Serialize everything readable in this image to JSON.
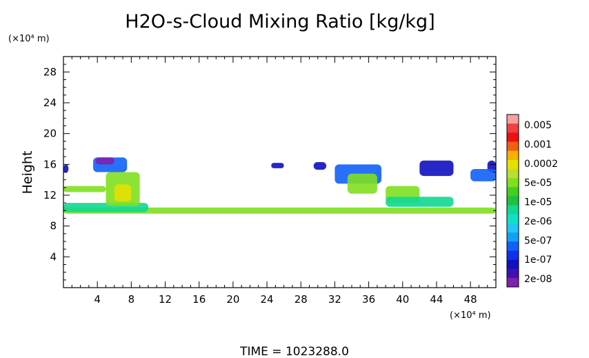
{
  "chart_data": {
    "type": "heatmap",
    "title": "H2O-s-Cloud Mixing Ratio [kg/kg]",
    "ylabel": "Height",
    "xlabel": "",
    "x_unit": "(×10⁴ m)",
    "y_unit": "(×10⁴ m)",
    "xlim": [
      0,
      51
    ],
    "ylim": [
      0,
      30
    ],
    "x_ticks": [
      "4",
      "8",
      "12",
      "16",
      "20",
      "24",
      "28",
      "32",
      "36",
      "40",
      "44",
      "48"
    ],
    "y_ticks": [
      "4",
      "8",
      "12",
      "16",
      "20",
      "24",
      "28"
    ],
    "footer": "TIME = 1023288.0",
    "colorbar": {
      "labels": [
        "0.005",
        "0.001",
        "0.0002",
        "5e-05",
        "1e-05",
        "2e-06",
        "5e-07",
        "1e-07",
        "2e-08"
      ],
      "colors_top_to_bottom": [
        "#f8a0a0",
        "#f04040",
        "#f01010",
        "#f06010",
        "#f5b000",
        "#e6e000",
        "#b8e030",
        "#80e020",
        "#40d020",
        "#20c040",
        "#10d890",
        "#10e0c8",
        "#20c8f0",
        "#10a0f8",
        "#1060f8",
        "#1030f0",
        "#1010c0",
        "#4010b0",
        "#8020b0"
      ]
    },
    "regions": [
      {
        "name": "lower cloud band",
        "x": [
          0.0,
          51.0
        ],
        "y": [
          9.6,
          10.4
        ],
        "level": "5e-05"
      },
      {
        "name": "band left",
        "x": [
          0.0,
          10.0
        ],
        "y": [
          9.8,
          11.0
        ],
        "level": "1e-05"
      },
      {
        "name": "left anvil",
        "x": [
          3.5,
          7.5
        ],
        "y": [
          15.0,
          16.9
        ],
        "level": "5e-07"
      },
      {
        "name": "left anvil top",
        "x": [
          3.8,
          6.0
        ],
        "y": [
          16.0,
          16.9
        ],
        "level": "2e-08"
      },
      {
        "name": "left plume",
        "x": [
          5.0,
          9.0
        ],
        "y": [
          10.6,
          15.0
        ],
        "level": "2e-05"
      },
      {
        "name": "left plume core",
        "x": [
          6.0,
          8.0
        ],
        "y": [
          11.2,
          13.4
        ],
        "level": "0.0002"
      },
      {
        "name": "left edge",
        "x": [
          0.0,
          0.6
        ],
        "y": [
          14.9,
          16.0
        ],
        "level": "1e-07"
      },
      {
        "name": "left mid band",
        "x": [
          0.0,
          5.0
        ],
        "y": [
          12.4,
          13.2
        ],
        "level": "5e-05"
      },
      {
        "name": "cell 25",
        "x": [
          24.5,
          26.0
        ],
        "y": [
          15.5,
          16.2
        ],
        "level": "1e-07"
      },
      {
        "name": "cell 30",
        "x": [
          29.5,
          31.0
        ],
        "y": [
          15.3,
          16.3
        ],
        "level": "1e-07"
      },
      {
        "name": "right anvil",
        "x": [
          32.0,
          37.5
        ],
        "y": [
          13.5,
          16.0
        ],
        "level": "5e-07"
      },
      {
        "name": "right plume",
        "x": [
          33.5,
          37.0
        ],
        "y": [
          12.2,
          14.8
        ],
        "level": "2e-05"
      },
      {
        "name": "right lower plume",
        "x": [
          38.0,
          42.0
        ],
        "y": [
          11.0,
          13.2
        ],
        "level": "5e-05"
      },
      {
        "name": "right low band",
        "x": [
          38.0,
          46.0
        ],
        "y": [
          10.5,
          11.8
        ],
        "level": "1e-05"
      },
      {
        "name": "far right anvil",
        "x": [
          42.0,
          46.0
        ],
        "y": [
          14.5,
          16.5
        ],
        "level": "1e-07"
      },
      {
        "name": "far right edge",
        "x": [
          50.0,
          51.0
        ],
        "y": [
          15.0,
          16.5
        ],
        "level": "1e-07"
      },
      {
        "name": "far right mid",
        "x": [
          48.0,
          51.0
        ],
        "y": [
          13.8,
          15.4
        ],
        "level": "5e-07"
      }
    ]
  }
}
